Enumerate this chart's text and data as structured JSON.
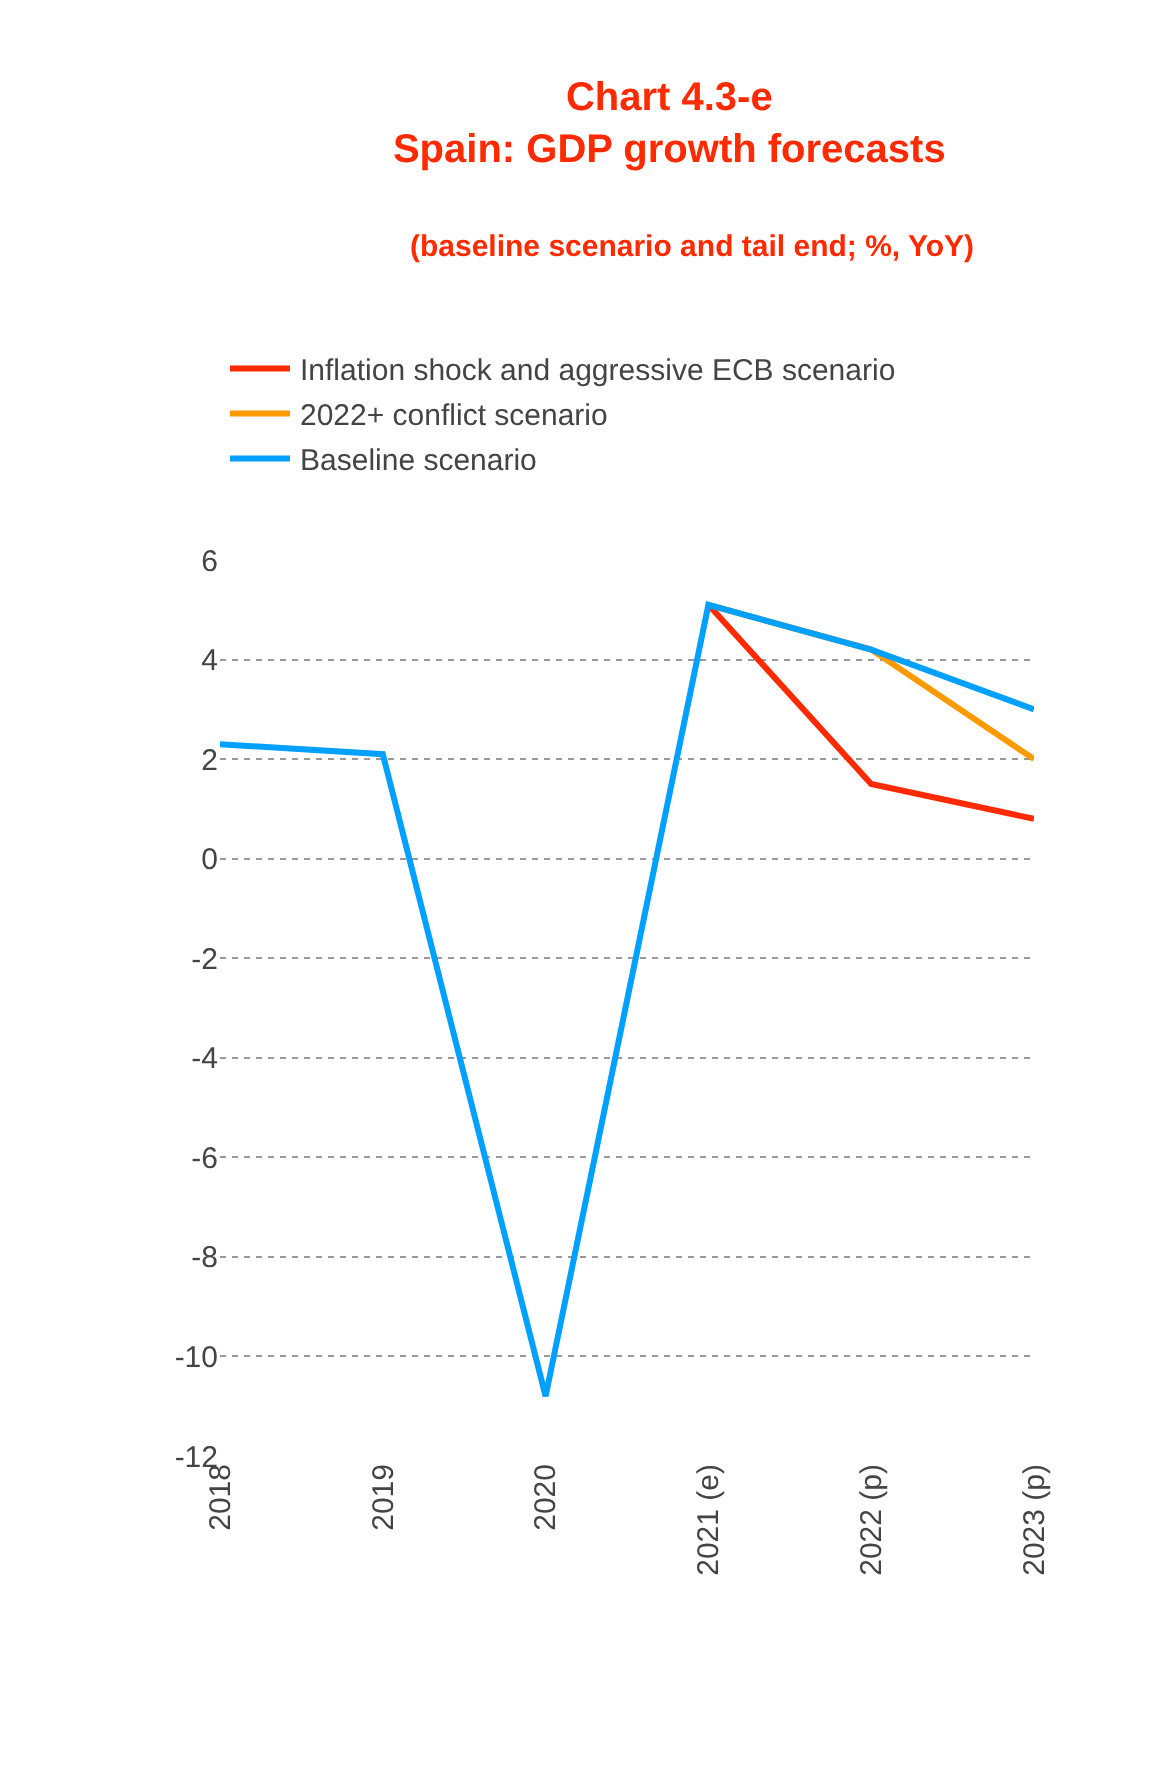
{
  "chart_data": {
    "type": "line",
    "title": "Chart 4.3-e\nSpain: GDP growth forecasts",
    "subtitle": "(baseline scenario and tail end; %, YoY)",
    "categories": [
      "2018",
      "2019",
      "2020",
      "2021 (e)",
      "2022 (p)",
      "2023 (p)"
    ],
    "series": [
      {
        "name": "Inflation shock and aggressive ECB scenario",
        "color": "#ff2a00",
        "values": [
          null,
          null,
          null,
          5.1,
          1.5,
          0.8
        ]
      },
      {
        "name": "2022+ conflict scenario",
        "color": "#ff9900",
        "values": [
          null,
          null,
          null,
          5.1,
          4.2,
          2.0
        ]
      },
      {
        "name": "Baseline scenario",
        "color": "#00a0ff",
        "values": [
          2.3,
          2.1,
          -10.8,
          5.1,
          4.2,
          3.0
        ]
      }
    ],
    "ylim": [
      -12,
      6
    ],
    "yticks": [
      -12,
      -10,
      -8,
      -6,
      -4,
      -2,
      0,
      2,
      4,
      6
    ],
    "grid": "y",
    "legend": "top left",
    "marker": "none",
    "line_style": "solid"
  }
}
